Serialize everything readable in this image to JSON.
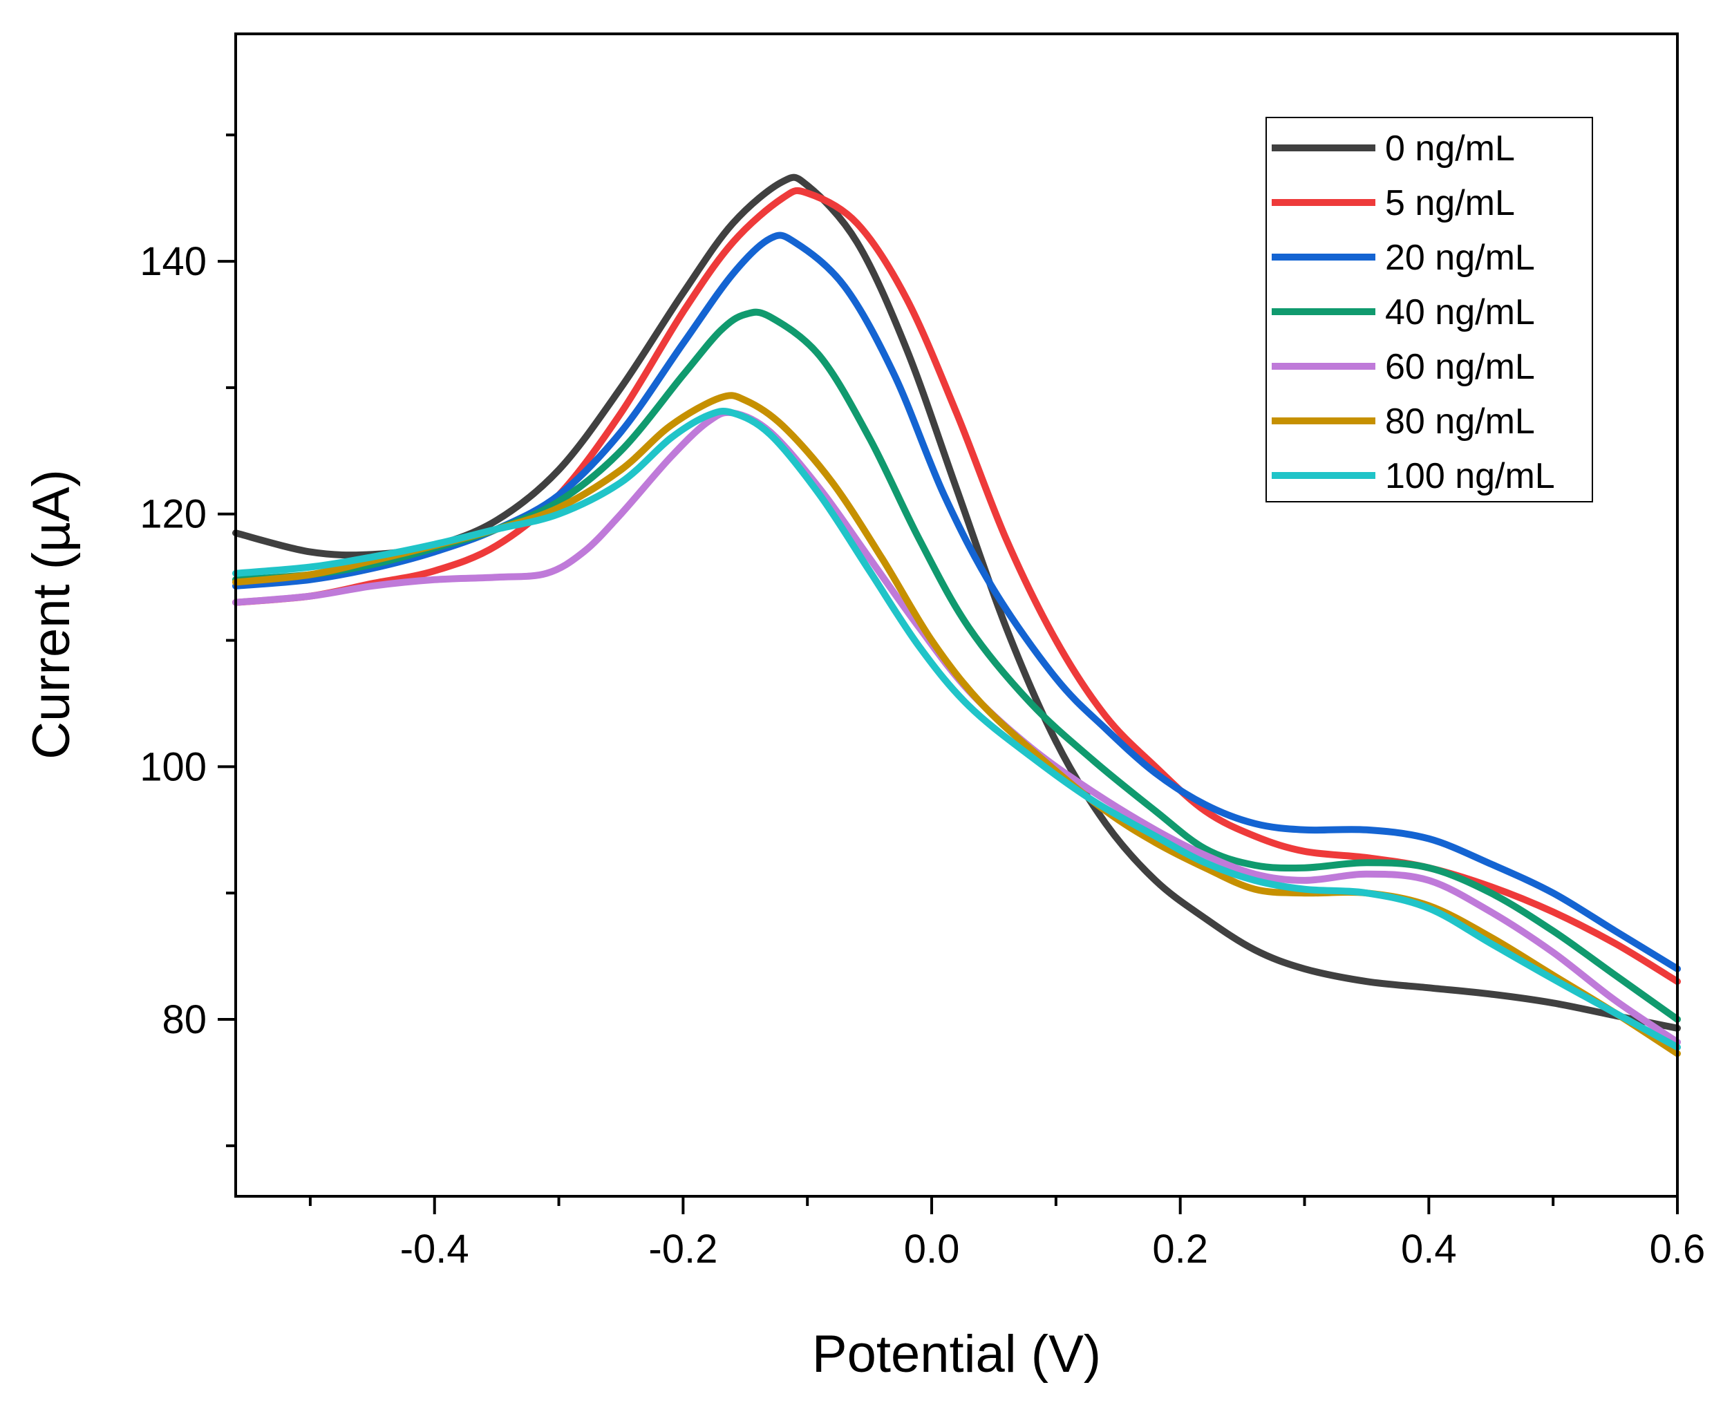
{
  "chart_data": {
    "type": "line",
    "title": "",
    "xlabel": "Potential (V)",
    "ylabel": "Current (µA)",
    "xlim": [
      -0.56,
      0.6
    ],
    "ylim": [
      66,
      158
    ],
    "x_ticks": [
      -0.4,
      -0.2,
      0.0,
      0.2,
      0.4,
      0.6
    ],
    "x_tick_labels": [
      "-0.4",
      "-0.2",
      "0.0",
      "0.2",
      "0.4",
      "0.6"
    ],
    "y_ticks": [
      80,
      100,
      120,
      140
    ],
    "y_tick_labels": [
      "80",
      "100",
      "120",
      "140"
    ],
    "grid": false,
    "legend_position": "top-right",
    "series": [
      {
        "name": "0 ng/mL",
        "color": "#404040",
        "points": [
          [
            -0.56,
            118.5
          ],
          [
            -0.5,
            117
          ],
          [
            -0.45,
            116.8
          ],
          [
            -0.4,
            117.5
          ],
          [
            -0.35,
            119.5
          ],
          [
            -0.3,
            123.5
          ],
          [
            -0.25,
            130
          ],
          [
            -0.2,
            137.5
          ],
          [
            -0.16,
            143
          ],
          [
            -0.12,
            146.3
          ],
          [
            -0.1,
            146
          ],
          [
            -0.06,
            141.5
          ],
          [
            -0.02,
            133
          ],
          [
            0.02,
            122
          ],
          [
            0.06,
            111
          ],
          [
            0.1,
            102
          ],
          [
            0.14,
            95.5
          ],
          [
            0.18,
            91
          ],
          [
            0.22,
            88
          ],
          [
            0.26,
            85.5
          ],
          [
            0.3,
            84
          ],
          [
            0.35,
            83
          ],
          [
            0.4,
            82.5
          ],
          [
            0.45,
            82
          ],
          [
            0.5,
            81.3
          ],
          [
            0.55,
            80.3
          ],
          [
            0.6,
            79.3
          ]
        ]
      },
      {
        "name": "5 ng/mL",
        "color": "#ee3a3a",
        "points": [
          [
            -0.56,
            113
          ],
          [
            -0.5,
            113.5
          ],
          [
            -0.45,
            114.5
          ],
          [
            -0.4,
            115.5
          ],
          [
            -0.35,
            117.5
          ],
          [
            -0.3,
            121.5
          ],
          [
            -0.25,
            128
          ],
          [
            -0.2,
            136
          ],
          [
            -0.16,
            141.5
          ],
          [
            -0.12,
            145
          ],
          [
            -0.1,
            145.4
          ],
          [
            -0.06,
            143
          ],
          [
            -0.02,
            137
          ],
          [
            0.02,
            128
          ],
          [
            0.06,
            118
          ],
          [
            0.1,
            110
          ],
          [
            0.14,
            104
          ],
          [
            0.18,
            100
          ],
          [
            0.22,
            96.5
          ],
          [
            0.26,
            94.5
          ],
          [
            0.3,
            93.3
          ],
          [
            0.35,
            92.8
          ],
          [
            0.4,
            92
          ],
          [
            0.45,
            90.5
          ],
          [
            0.5,
            88.5
          ],
          [
            0.55,
            86
          ],
          [
            0.6,
            83
          ]
        ]
      },
      {
        "name": "20 ng/mL",
        "color": "#1464d2",
        "points": [
          [
            -0.56,
            114.3
          ],
          [
            -0.5,
            114.8
          ],
          [
            -0.45,
            115.7
          ],
          [
            -0.4,
            117
          ],
          [
            -0.35,
            118.8
          ],
          [
            -0.3,
            121.5
          ],
          [
            -0.25,
            126.5
          ],
          [
            -0.2,
            133.5
          ],
          [
            -0.16,
            139
          ],
          [
            -0.13,
            141.8
          ],
          [
            -0.11,
            141.5
          ],
          [
            -0.07,
            138
          ],
          [
            -0.03,
            131
          ],
          [
            0.01,
            121.5
          ],
          [
            0.05,
            114
          ],
          [
            0.1,
            107
          ],
          [
            0.14,
            103
          ],
          [
            0.18,
            99.5
          ],
          [
            0.22,
            97
          ],
          [
            0.26,
            95.5
          ],
          [
            0.3,
            95
          ],
          [
            0.35,
            95
          ],
          [
            0.4,
            94.3
          ],
          [
            0.45,
            92.3
          ],
          [
            0.5,
            90
          ],
          [
            0.55,
            87
          ],
          [
            0.6,
            84
          ]
        ]
      },
      {
        "name": "40 ng/mL",
        "color": "#109a6e",
        "points": [
          [
            -0.56,
            114.8
          ],
          [
            -0.5,
            115.2
          ],
          [
            -0.45,
            116
          ],
          [
            -0.4,
            117.3
          ],
          [
            -0.35,
            118.8
          ],
          [
            -0.3,
            121
          ],
          [
            -0.25,
            125
          ],
          [
            -0.2,
            131
          ],
          [
            -0.17,
            134.5
          ],
          [
            -0.15,
            135.8
          ],
          [
            -0.13,
            135.6
          ],
          [
            -0.09,
            132.5
          ],
          [
            -0.05,
            126
          ],
          [
            -0.01,
            118
          ],
          [
            0.03,
            111
          ],
          [
            0.08,
            105
          ],
          [
            0.13,
            100.5
          ],
          [
            0.18,
            96.5
          ],
          [
            0.22,
            93.5
          ],
          [
            0.26,
            92.2
          ],
          [
            0.3,
            92
          ],
          [
            0.35,
            92.4
          ],
          [
            0.4,
            92
          ],
          [
            0.45,
            90
          ],
          [
            0.5,
            87
          ],
          [
            0.55,
            83.5
          ],
          [
            0.6,
            80
          ]
        ]
      },
      {
        "name": "60 ng/mL",
        "color": "#bf7ad9",
        "points": [
          [
            -0.56,
            113
          ],
          [
            -0.5,
            113.5
          ],
          [
            -0.45,
            114.3
          ],
          [
            -0.4,
            114.8
          ],
          [
            -0.35,
            115
          ],
          [
            -0.31,
            115.3
          ],
          [
            -0.28,
            117
          ],
          [
            -0.25,
            120
          ],
          [
            -0.21,
            124.5
          ],
          [
            -0.18,
            127.3
          ],
          [
            -0.16,
            128
          ],
          [
            -0.13,
            126.5
          ],
          [
            -0.09,
            122
          ],
          [
            -0.05,
            116.5
          ],
          [
            -0.01,
            111
          ],
          [
            0.03,
            106
          ],
          [
            0.08,
            101.5
          ],
          [
            0.13,
            98
          ],
          [
            0.18,
            95
          ],
          [
            0.22,
            93
          ],
          [
            0.26,
            91.5
          ],
          [
            0.3,
            91
          ],
          [
            0.35,
            91.5
          ],
          [
            0.4,
            91
          ],
          [
            0.45,
            88.5
          ],
          [
            0.5,
            85.3
          ],
          [
            0.55,
            81.5
          ],
          [
            0.6,
            78.2
          ]
        ]
      },
      {
        "name": "80 ng/mL",
        "color": "#c69000",
        "points": [
          [
            -0.56,
            114.6
          ],
          [
            -0.5,
            115.2
          ],
          [
            -0.45,
            116.3
          ],
          [
            -0.4,
            117.5
          ],
          [
            -0.35,
            118.8
          ],
          [
            -0.3,
            120.5
          ],
          [
            -0.25,
            123.5
          ],
          [
            -0.21,
            127
          ],
          [
            -0.17,
            129.2
          ],
          [
            -0.15,
            129
          ],
          [
            -0.12,
            127
          ],
          [
            -0.08,
            122.5
          ],
          [
            -0.04,
            116.5
          ],
          [
            0,
            110
          ],
          [
            0.04,
            105
          ],
          [
            0.09,
            100.5
          ],
          [
            0.14,
            96.5
          ],
          [
            0.18,
            94
          ],
          [
            0.22,
            92
          ],
          [
            0.26,
            90.3
          ],
          [
            0.3,
            90
          ],
          [
            0.35,
            90
          ],
          [
            0.4,
            89
          ],
          [
            0.45,
            86.5
          ],
          [
            0.5,
            83.5
          ],
          [
            0.55,
            80.5
          ],
          [
            0.6,
            77.3
          ]
        ]
      },
      {
        "name": "100 ng/mL",
        "color": "#20c4c8",
        "points": [
          [
            -0.56,
            115.3
          ],
          [
            -0.5,
            115.8
          ],
          [
            -0.45,
            116.6
          ],
          [
            -0.4,
            117.6
          ],
          [
            -0.35,
            118.8
          ],
          [
            -0.3,
            120
          ],
          [
            -0.25,
            122.5
          ],
          [
            -0.21,
            126
          ],
          [
            -0.18,
            127.8
          ],
          [
            -0.16,
            128
          ],
          [
            -0.13,
            126.3
          ],
          [
            -0.09,
            121.5
          ],
          [
            -0.05,
            115.5
          ],
          [
            -0.01,
            109.5
          ],
          [
            0.03,
            104.8
          ],
          [
            0.08,
            100.8
          ],
          [
            0.13,
            97.3
          ],
          [
            0.18,
            94.5
          ],
          [
            0.22,
            92.4
          ],
          [
            0.26,
            91
          ],
          [
            0.3,
            90.3
          ],
          [
            0.35,
            90
          ],
          [
            0.4,
            88.8
          ],
          [
            0.45,
            86
          ],
          [
            0.5,
            83.2
          ],
          [
            0.55,
            80.5
          ],
          [
            0.6,
            77.8
          ]
        ]
      }
    ]
  }
}
